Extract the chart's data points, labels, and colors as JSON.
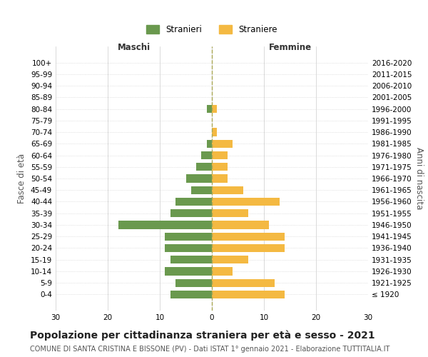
{
  "age_groups": [
    "100+",
    "95-99",
    "90-94",
    "85-89",
    "80-84",
    "75-79",
    "70-74",
    "65-69",
    "60-64",
    "55-59",
    "50-54",
    "45-49",
    "40-44",
    "35-39",
    "30-34",
    "25-29",
    "20-24",
    "15-19",
    "10-14",
    "5-9",
    "0-4"
  ],
  "birth_years": [
    "≤ 1920",
    "1921-1925",
    "1926-1930",
    "1931-1935",
    "1936-1940",
    "1941-1945",
    "1946-1950",
    "1951-1955",
    "1956-1960",
    "1961-1965",
    "1966-1970",
    "1971-1975",
    "1976-1980",
    "1981-1985",
    "1986-1990",
    "1991-1995",
    "1996-2000",
    "2001-2005",
    "2006-2010",
    "2011-2015",
    "2016-2020"
  ],
  "maschi": [
    0,
    0,
    0,
    0,
    1,
    0,
    0,
    1,
    2,
    3,
    5,
    4,
    7,
    8,
    18,
    9,
    9,
    8,
    9,
    7,
    8
  ],
  "femmine": [
    0,
    0,
    0,
    0,
    1,
    0,
    1,
    4,
    3,
    3,
    3,
    6,
    13,
    7,
    11,
    14,
    14,
    7,
    4,
    12,
    14
  ],
  "color_maschi": "#6a994e",
  "color_femmine": "#f4b942",
  "bg_color": "#ffffff",
  "grid_color": "#cccccc",
  "title": "Popolazione per cittadinanza straniera per età e sesso - 2021",
  "subtitle": "COMUNE DI SANTA CRISTINA E BISSONE (PV) - Dati ISTAT 1° gennaio 2021 - Elaborazione TUTTITALIA.IT",
  "ylabel_left": "Fasce di età",
  "ylabel_right": "Anni di nascita",
  "xlabel_maschi": "Maschi",
  "xlabel_femmine": "Femmine",
  "legend_maschi": "Stranieri",
  "legend_femmine": "Straniere",
  "xlim": 30,
  "title_fontsize": 10,
  "subtitle_fontsize": 7,
  "axis_label_fontsize": 8.5,
  "tick_fontsize": 7.5
}
